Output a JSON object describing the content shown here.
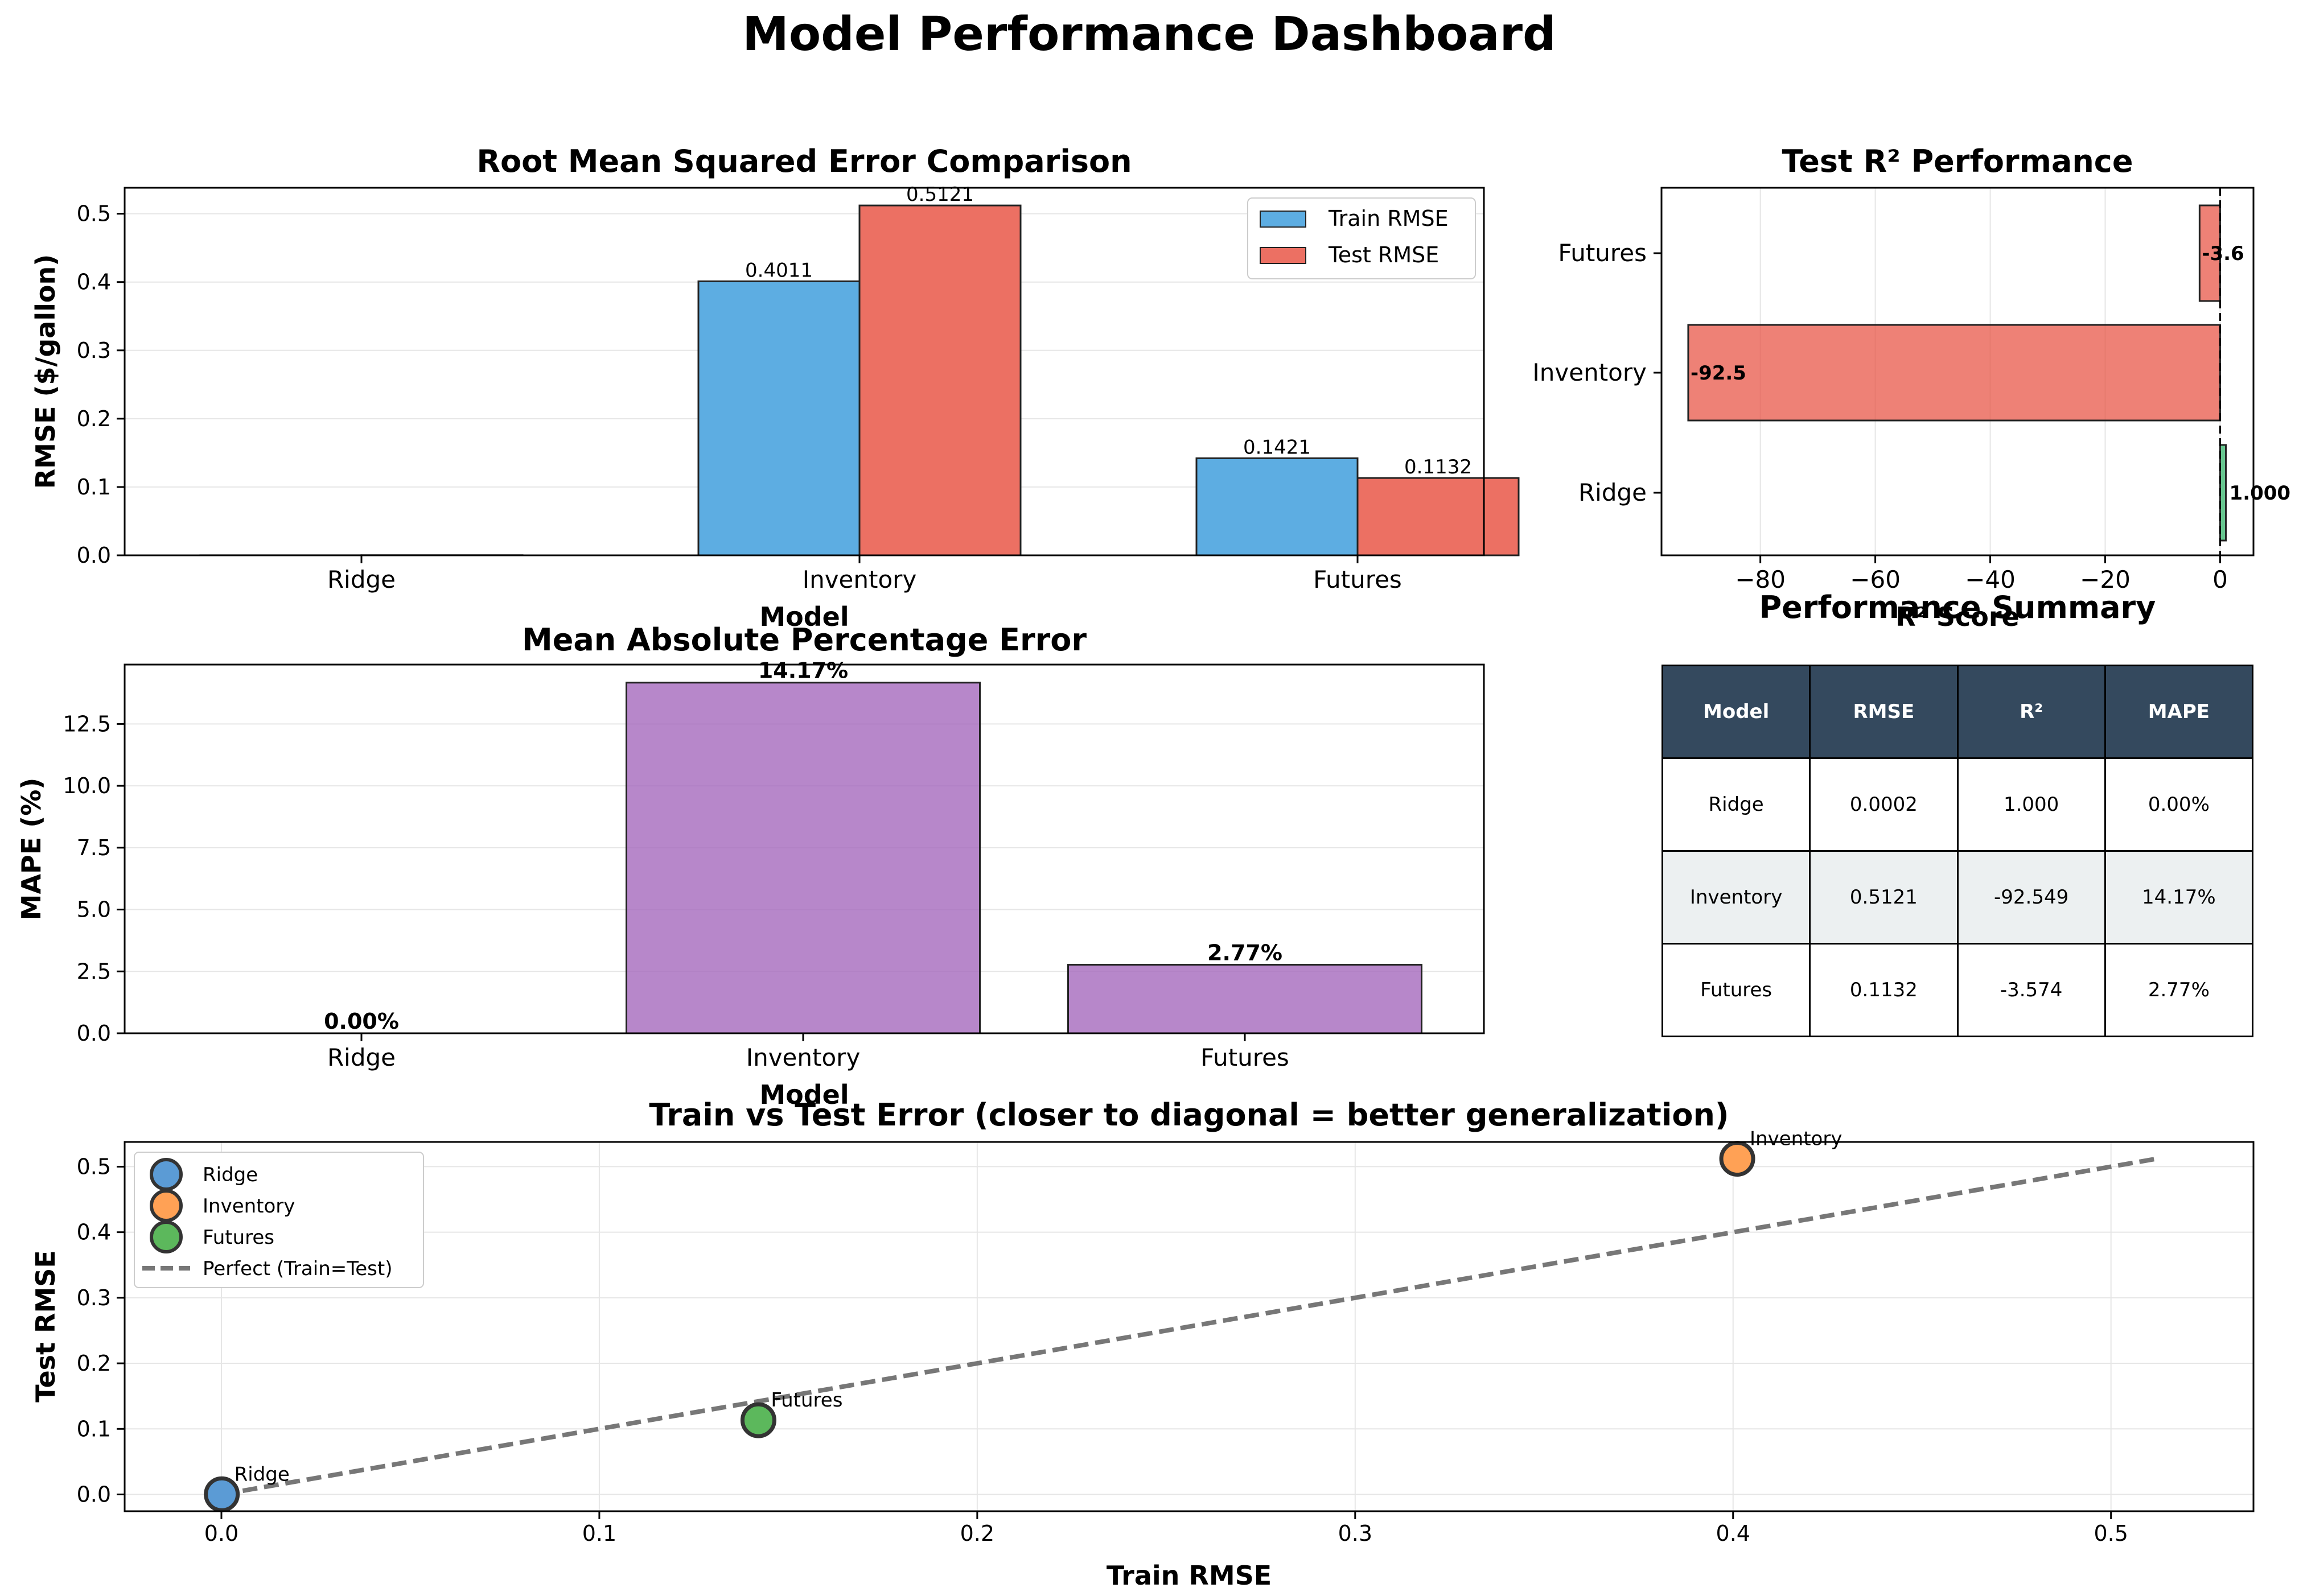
{
  "title": "Model Performance Dashboard",
  "chart_data": [
    {
      "type": "bar",
      "title": "Root Mean Squared Error Comparison",
      "xlabel": "Model",
      "ylabel": "RMSE ($/gallon)",
      "categories": [
        "Ridge",
        "Inventory",
        "Futures"
      ],
      "series": [
        {
          "name": "Train RMSE",
          "values": [
            0.0001,
            0.4011,
            0.1421
          ],
          "color": "#5dade2"
        },
        {
          "name": "Test RMSE",
          "values": [
            0.0002,
            0.5121,
            0.1132
          ],
          "color": "#ec7063"
        }
      ],
      "data_labels": {
        "Train RMSE": [
          "",
          "0.4011",
          "0.1421"
        ],
        "Test RMSE": [
          "",
          "0.5121",
          "0.1132"
        ]
      },
      "ylim": [
        0,
        0.538
      ],
      "yticks": [
        "0.0",
        "0.1",
        "0.2",
        "0.3",
        "0.4",
        "0.5"
      ],
      "legend": "top-right",
      "grid": true
    },
    {
      "type": "bar",
      "orientation": "horizontal",
      "title": "Test R² Performance",
      "xlabel": "R² Score",
      "categories": [
        "Ridge",
        "Inventory",
        "Futures"
      ],
      "values": [
        1.0,
        -92.549,
        -3.574
      ],
      "data_labels": [
        "1.000",
        "-92.5",
        "-3.6"
      ],
      "colors": [
        "#27ae60",
        "#e74c3c",
        "#e74c3c"
      ],
      "xlim": [
        -97.2,
        5.8
      ],
      "xticks": [
        "−80",
        "−60",
        "−40",
        "−20",
        "0"
      ],
      "grid": true
    },
    {
      "type": "bar",
      "title": "Mean Absolute Percentage Error",
      "xlabel": "Model",
      "ylabel": "MAPE (%)",
      "categories": [
        "Ridge",
        "Inventory",
        "Futures"
      ],
      "values": [
        0.0,
        14.17,
        2.77
      ],
      "data_labels": [
        "0.00%",
        "14.17%",
        "2.77%"
      ],
      "color": "#a569bd",
      "ylim": [
        0,
        14.9
      ],
      "yticks": [
        "0.0",
        "2.5",
        "5.0",
        "7.5",
        "10.0",
        "12.5"
      ],
      "grid": true
    },
    {
      "type": "table",
      "title": "Performance Summary",
      "columns": [
        "Model",
        "RMSE",
        "R²",
        "MAPE"
      ],
      "rows": [
        [
          "Ridge",
          "0.0002",
          "1.000",
          "0.00%"
        ],
        [
          "Inventory",
          "0.5121",
          "-92.549",
          "14.17%"
        ],
        [
          "Futures",
          "0.1132",
          "-3.574",
          "2.77%"
        ]
      ],
      "header_color": "#34495e",
      "alt_row_color": "#ecf0f1"
    },
    {
      "type": "scatter",
      "title": "Train vs Test Error (closer to diagonal = better generalization)",
      "xlabel": "Train RMSE",
      "ylabel": "Test RMSE",
      "series": [
        {
          "name": "Ridge",
          "x": 0.0001,
          "y": 0.0002,
          "label": "Ridge",
          "color": "#5b9bd5"
        },
        {
          "name": "Inventory",
          "x": 0.4011,
          "y": 0.5121,
          "label": "Inventory",
          "color": "#ffa155"
        },
        {
          "name": "Futures",
          "x": 0.1421,
          "y": 0.1132,
          "label": "Futures",
          "color": "#5cb85c"
        }
      ],
      "line": {
        "name": "Perfect (Train=Test)",
        "x": [
          0,
          0.5121
        ],
        "y": [
          0,
          0.5121
        ],
        "style": "dashed",
        "color": "#777777"
      },
      "xlim": [
        -0.0256,
        0.5377
      ],
      "ylim": [
        -0.0256,
        0.5377
      ],
      "xticks": [
        "0.0",
        "0.1",
        "0.2",
        "0.3",
        "0.4",
        "0.5"
      ],
      "yticks": [
        "0.0",
        "0.1",
        "0.2",
        "0.3",
        "0.4",
        "0.5"
      ],
      "legend": "top-left",
      "grid": true
    }
  ]
}
